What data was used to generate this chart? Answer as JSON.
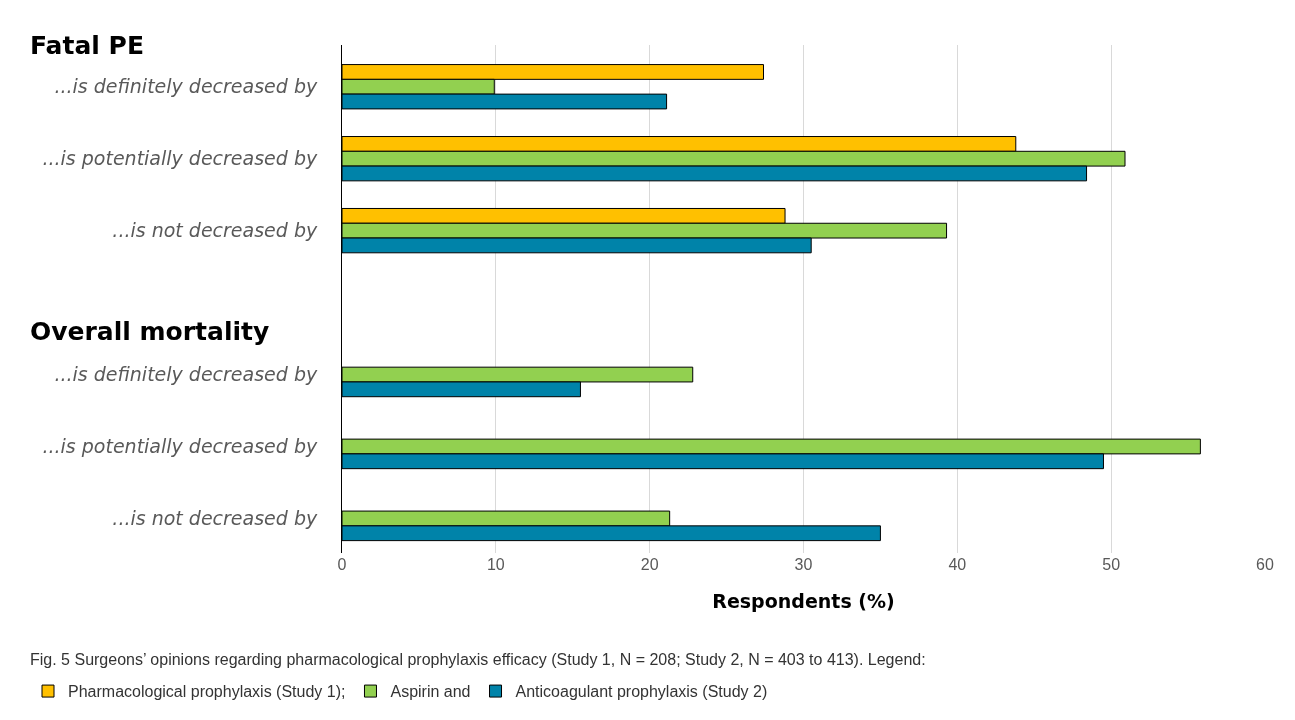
{
  "chart_data": {
    "type": "bar",
    "orientation": "horizontal",
    "categories": [
      "...is definitely decreased by",
      "...is potentially decreased by",
      "...is not decreased by",
      null,
      "...is definitely decreased by",
      "...is potentially decreased by",
      "...is not decreased by"
    ],
    "series": [
      {
        "name": "Pharmacological prophylaxis (Study 1);",
        "color": "#ffc000",
        "values": [
          27.4,
          43.8,
          28.8,
          null,
          null,
          null,
          null
        ]
      },
      {
        "name": "Aspirin and",
        "color": "#92d050",
        "values": [
          9.9,
          50.9,
          39.3,
          null,
          22.8,
          55.8,
          21.3
        ]
      },
      {
        "name": "Anticoagulant prophylaxis (Study 2)",
        "color": "#0083a9",
        "values": [
          21.1,
          48.4,
          30.5,
          null,
          15.5,
          49.5,
          35.0
        ]
      }
    ],
    "xlim": [
      0,
      60
    ],
    "xticks": [
      0,
      10,
      20,
      30,
      40,
      50,
      60
    ],
    "xlabel": "Respondents (%)",
    "grid": "x",
    "legend": "bottom",
    "annotations": [
      "Fatal PE",
      "Overall mortality",
      "Fig. 5 Surgeons’ opinions regarding pharmacological prophylaxis efficacy (Study 1, N = 208; Study 2, N = 403 to 413). Legend:"
    ]
  }
}
